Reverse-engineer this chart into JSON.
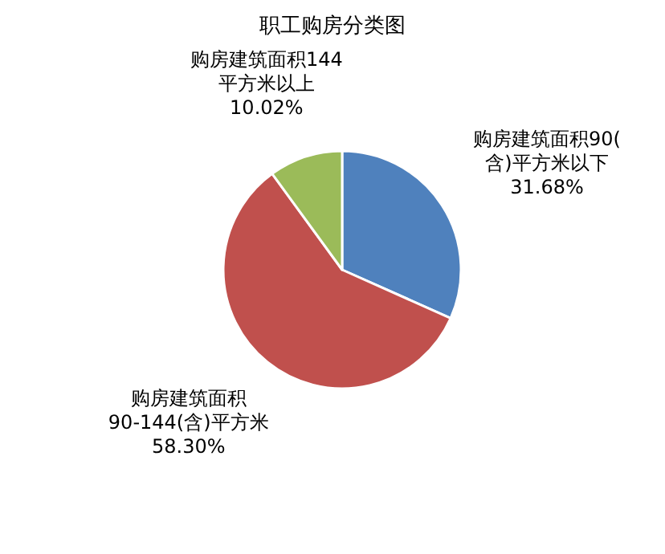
{
  "chart_data": {
    "type": "pie",
    "title": "职工购房分类图",
    "categories": [
      "购房建筑面积90(含)平方米以下",
      "购房建筑面积90-144(含)平方米",
      "购房建筑面积144平方米以上"
    ],
    "values": [
      31.68,
      58.3,
      10.02
    ],
    "colors": [
      "#4f81bd",
      "#c0504d",
      "#9bbb59"
    ],
    "value_labels": [
      "31.68%",
      "58.30%",
      "10.02%"
    ]
  }
}
